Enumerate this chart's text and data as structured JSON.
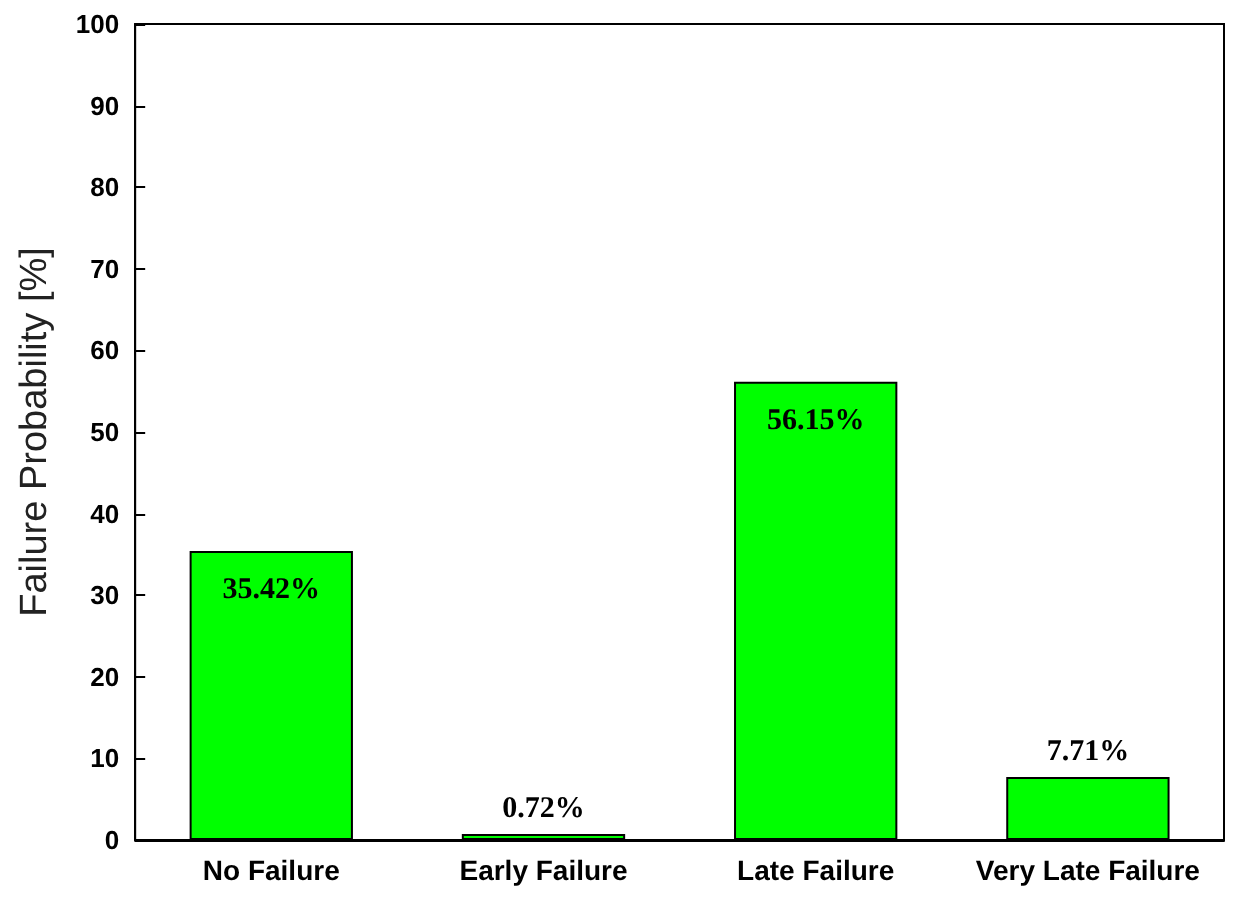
{
  "chart_data": {
    "type": "bar",
    "ylabel": "Failure Probability [%]",
    "categories": [
      "No Failure",
      "Early Failure",
      "Late Failure",
      "Very Late Failure"
    ],
    "values": [
      35.42,
      0.72,
      56.15,
      7.71
    ],
    "value_labels": [
      "35.42%",
      "0.72%",
      "56.15%",
      "7.71%"
    ],
    "color": "#00ff00",
    "ylim": [
      0,
      100
    ],
    "yticks": [
      0,
      10,
      20,
      30,
      40,
      50,
      60,
      70,
      80,
      90,
      100
    ],
    "grid": false
  }
}
